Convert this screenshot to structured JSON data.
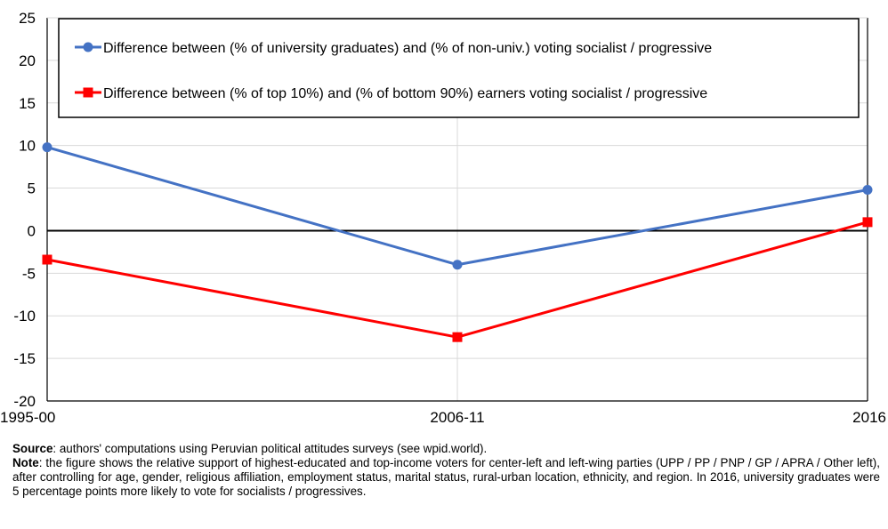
{
  "chart_data": {
    "type": "line",
    "categories": [
      "1995-00",
      "2006-11",
      "2016"
    ],
    "series": [
      {
        "name": "Difference between (% of university graduates) and (% of non-univ.) voting socialist / progressive",
        "values": [
          9.8,
          -4.0,
          4.8
        ],
        "color": "#4472C4",
        "marker": "circle"
      },
      {
        "name": "Difference between (% of top 10%) and (% of bottom 90%) earners voting socialist / progressive",
        "values": [
          -3.4,
          -12.5,
          1.0
        ],
        "color": "#FF0000",
        "marker": "square"
      }
    ],
    "ylim": [
      -20,
      25
    ],
    "yticks": [
      -20,
      -15,
      -10,
      -5,
      0,
      5,
      10,
      15,
      20,
      25
    ],
    "grid": true,
    "legend_position": "top",
    "zero_line": true,
    "title": "",
    "xlabel": "",
    "ylabel": ""
  },
  "notes": {
    "source_label": "Source",
    "source_text": ": authors' computations using Peruvian political attitudes surveys (see wpid.world).",
    "note_label": "Note",
    "note_text": ": the figure shows the relative support of highest-educated and top-income voters for center-left and left-wing parties (UPP / PP / PNP / GP / APRA / Other left), after controlling for age, gender, religious affiliation, employment status, marital status, rural-urban location, ethnicity, and region. In 2016, university graduates were 5 percentage points more likely to vote for socialists / progressives."
  }
}
